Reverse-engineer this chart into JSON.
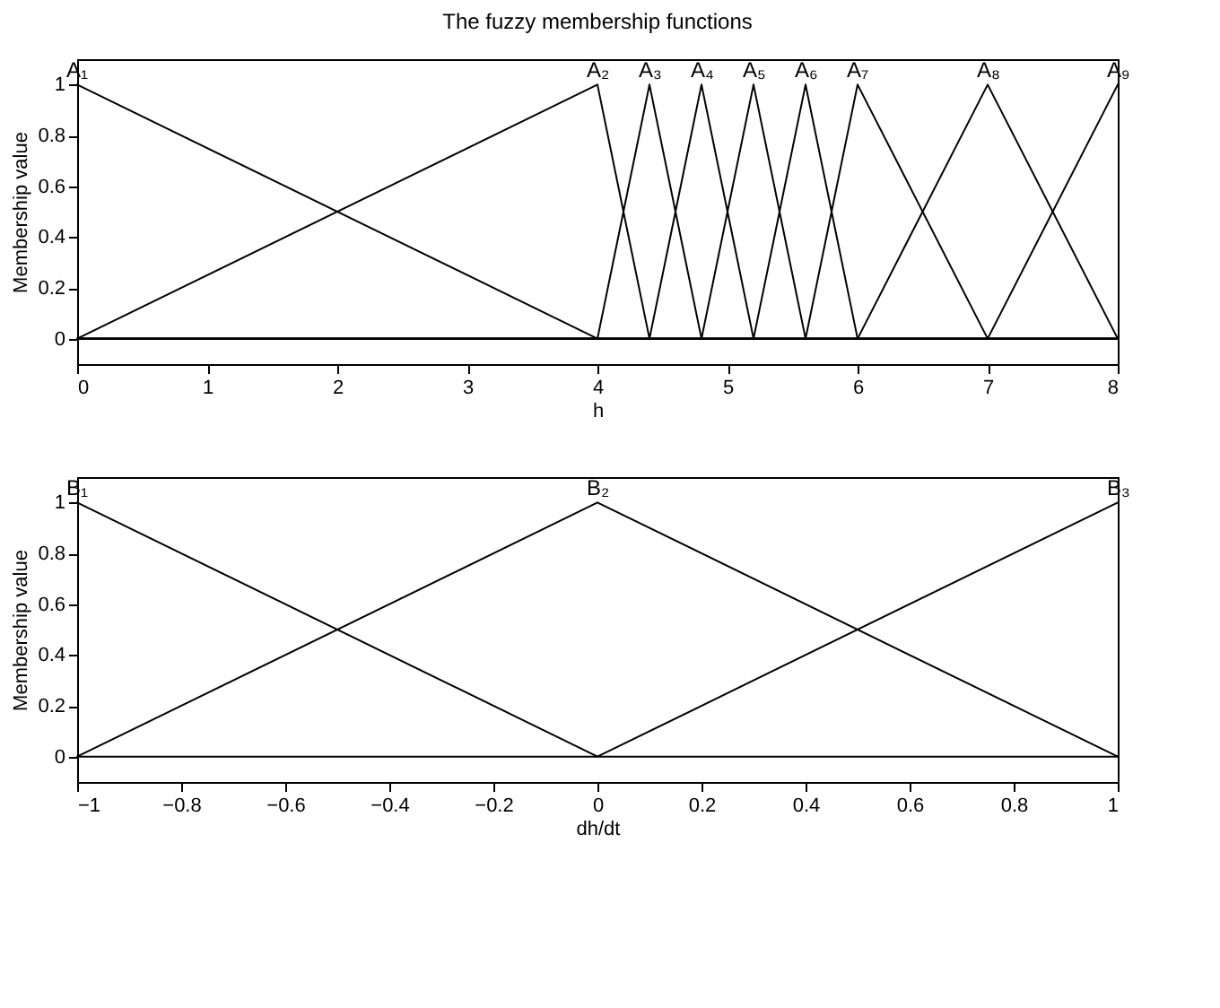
{
  "chart_data": [
    {
      "type": "line",
      "title": "The fuzzy membership functions",
      "xlabel": "h",
      "ylabel": "Membership value",
      "xlim": [
        0,
        8
      ],
      "ylim": [
        -0.1,
        1.1
      ],
      "xticks": [
        0,
        1,
        2,
        3,
        4,
        5,
        6,
        7,
        8
      ],
      "yticks": [
        0,
        0.2,
        0.4,
        0.6,
        0.8,
        1
      ],
      "series": [
        {
          "color": "#000000",
          "x": [
            0,
            4,
            8
          ],
          "values": [
            1,
            0,
            0
          ]
        },
        {
          "color": "#000000",
          "x": [
            0,
            4,
            4.4,
            8
          ],
          "values": [
            0,
            1,
            0,
            0
          ]
        },
        {
          "color": "#000000",
          "x": [
            0,
            4,
            4.4,
            4.8,
            8
          ],
          "values": [
            0,
            0,
            1,
            0,
            0
          ]
        },
        {
          "color": "#000000",
          "x": [
            0,
            4.4,
            4.8,
            5.2,
            8
          ],
          "values": [
            0,
            0,
            1,
            0,
            0
          ]
        },
        {
          "color": "#000000",
          "x": [
            0,
            4.8,
            5.2,
            5.6,
            8
          ],
          "values": [
            0,
            0,
            1,
            0,
            0
          ]
        },
        {
          "color": "#000000",
          "x": [
            0,
            5.2,
            5.6,
            6,
            8
          ],
          "values": [
            0,
            0,
            1,
            0,
            0
          ]
        },
        {
          "color": "#000000",
          "x": [
            0,
            5.6,
            6,
            7,
            8
          ],
          "values": [
            0,
            0,
            1,
            0,
            0
          ]
        },
        {
          "color": "#000000",
          "x": [
            0,
            6,
            7,
            8
          ],
          "values": [
            0,
            0,
            1,
            0
          ]
        },
        {
          "color": "#000000",
          "x": [
            0,
            7,
            8
          ],
          "values": [
            0,
            0,
            1
          ]
        }
      ],
      "annotations": [
        {
          "text": "A₁",
          "x": 0,
          "y": 1
        },
        {
          "text": "A₂",
          "x": 4,
          "y": 1
        },
        {
          "text": "A₃",
          "x": 4.4,
          "y": 1
        },
        {
          "text": "A₄",
          "x": 4.8,
          "y": 1
        },
        {
          "text": "A₅",
          "x": 5.2,
          "y": 1
        },
        {
          "text": "A₆",
          "x": 5.6,
          "y": 1
        },
        {
          "text": "A₇",
          "x": 6,
          "y": 1
        },
        {
          "text": "A₈",
          "x": 7,
          "y": 1
        },
        {
          "text": "A₉",
          "x": 8,
          "y": 1
        }
      ]
    },
    {
      "type": "line",
      "xlabel": "dh/dt",
      "ylabel": "Membership value",
      "xlim": [
        -1,
        1
      ],
      "ylim": [
        -0.1,
        1.1
      ],
      "xticks": [
        -1,
        -0.8,
        -0.6,
        -0.4,
        -0.2,
        0,
        0.2,
        0.4,
        0.6,
        0.8,
        1
      ],
      "yticks": [
        0,
        0.2,
        0.4,
        0.6,
        0.8,
        1
      ],
      "series": [
        {
          "color": "#000000",
          "x": [
            -1,
            0,
            1
          ],
          "values": [
            1,
            0,
            0
          ]
        },
        {
          "color": "#000000",
          "x": [
            -1,
            0,
            1
          ],
          "values": [
            0,
            1,
            0
          ]
        },
        {
          "color": "#000000",
          "x": [
            -1,
            0,
            1
          ],
          "values": [
            0,
            0,
            1
          ]
        }
      ],
      "annotations": [
        {
          "text": "B₁",
          "x": -1,
          "y": 1
        },
        {
          "text": "B₂",
          "x": 0,
          "y": 1
        },
        {
          "text": "B₃",
          "x": 1,
          "y": 1
        }
      ]
    }
  ]
}
